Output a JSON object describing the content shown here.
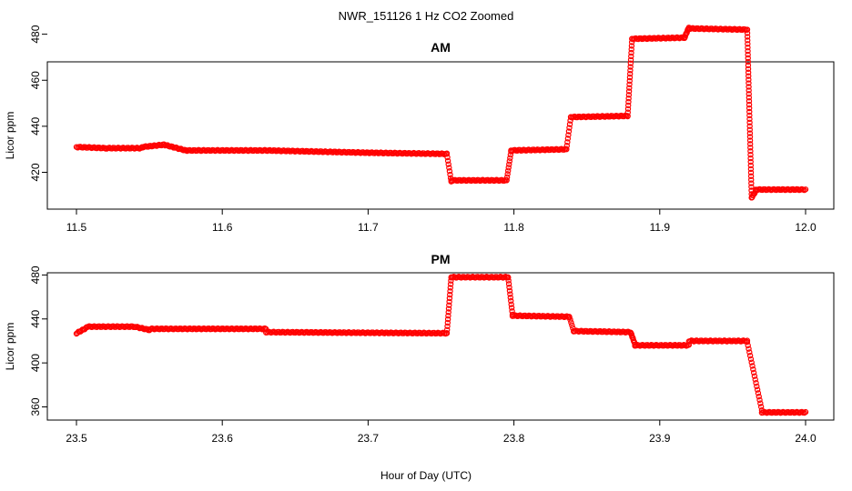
{
  "chart_data": {
    "type": "scatter",
    "title": "NWR_151126  1 Hz CO2 Zoomed",
    "xlabel": "Hour of Day (UTC)",
    "marker_color": "#ff0000",
    "panels": [
      {
        "title": "AM",
        "ylabel": "Licor ppm",
        "xlim": [
          11.5,
          12.0
        ],
        "ylim": [
          404,
          468
        ],
        "xticks": [
          "11.5",
          "11.6",
          "11.7",
          "11.8",
          "11.9",
          "12.0"
        ],
        "yticks": [
          "420",
          "440",
          "460",
          "480"
        ],
        "segments": [
          {
            "x": [
              11.5,
              11.52
            ],
            "y": [
              431,
              430.5
            ]
          },
          {
            "x": [
              11.52,
              11.545
            ],
            "y": [
              430.5,
              430.5
            ]
          },
          {
            "x": [
              11.545,
              11.56
            ],
            "y": [
              431,
              432
            ]
          },
          {
            "x": [
              11.56,
              11.575
            ],
            "y": [
              432,
              429.5
            ]
          },
          {
            "x": [
              11.575,
              11.63
            ],
            "y": [
              429.5,
              429.5
            ]
          },
          {
            "x": [
              11.63,
              11.7
            ],
            "y": [
              429.5,
              428.5
            ]
          },
          {
            "x": [
              11.7,
              11.754
            ],
            "y": [
              428.5,
              428
            ]
          },
          {
            "x": [
              11.754,
              11.757
            ],
            "y": [
              428,
              416
            ]
          },
          {
            "x": [
              11.757,
              11.795
            ],
            "y": [
              416.5,
              416.5
            ]
          },
          {
            "x": [
              11.795,
              11.798
            ],
            "y": [
              416.5,
              429
            ]
          },
          {
            "x": [
              11.798,
              11.836
            ],
            "y": [
              429.5,
              430
            ]
          },
          {
            "x": [
              11.836,
              11.839
            ],
            "y": [
              430,
              444
            ]
          },
          {
            "x": [
              11.839,
              11.878
            ],
            "y": [
              444,
              444.5
            ]
          },
          {
            "x": [
              11.878,
              11.881
            ],
            "y": [
              444.5,
              478
            ]
          },
          {
            "x": [
              11.881,
              11.917
            ],
            "y": [
              478,
              478.5
            ]
          },
          {
            "x": [
              11.917,
              11.92
            ],
            "y": [
              478.5,
              483
            ]
          },
          {
            "x": [
              11.92,
              11.96
            ],
            "y": [
              482.5,
              482
            ]
          },
          {
            "x": [
              11.96,
              11.963
            ],
            "y": [
              482,
              409
            ]
          },
          {
            "x": [
              11.963,
              11.966
            ],
            "y": [
              409,
              412
            ]
          },
          {
            "x": [
              11.966,
              12.0
            ],
            "y": [
              412.5,
              412.5
            ]
          }
        ]
      },
      {
        "title": "PM",
        "ylabel": "Licor ppm",
        "xlim": [
          23.5,
          24.0
        ],
        "ylim": [
          348,
          482
        ],
        "xticks": [
          "23.5",
          "23.6",
          "23.7",
          "23.8",
          "23.9",
          "24.0"
        ],
        "yticks": [
          "360",
          "400",
          "440",
          "480"
        ],
        "segments": [
          {
            "x": [
              23.5,
              23.507
            ],
            "y": [
              427,
              432
            ]
          },
          {
            "x": [
              23.507,
              23.54
            ],
            "y": [
              433,
              433
            ]
          },
          {
            "x": [
              23.54,
              23.55
            ],
            "y": [
              433,
              430
            ]
          },
          {
            "x": [
              23.55,
              23.63
            ],
            "y": [
              431,
              431
            ]
          },
          {
            "x": [
              23.63,
              23.754
            ],
            "y": [
              428,
              427
            ]
          },
          {
            "x": [
              23.754,
              23.757
            ],
            "y": [
              427,
              478
            ]
          },
          {
            "x": [
              23.757,
              23.796
            ],
            "y": [
              478,
              478
            ]
          },
          {
            "x": [
              23.796,
              23.799
            ],
            "y": [
              478,
              444
            ]
          },
          {
            "x": [
              23.799,
              23.838
            ],
            "y": [
              443,
              442
            ]
          },
          {
            "x": [
              23.838,
              23.841
            ],
            "y": [
              442,
              429
            ]
          },
          {
            "x": [
              23.841,
              23.88
            ],
            "y": [
              429,
              428
            ]
          },
          {
            "x": [
              23.88,
              23.883
            ],
            "y": [
              428,
              417
            ]
          },
          {
            "x": [
              23.883,
              23.92
            ],
            "y": [
              416,
              416
            ]
          },
          {
            "x": [
              23.92,
              23.96
            ],
            "y": [
              420,
              420
            ]
          },
          {
            "x": [
              23.96,
              23.97
            ],
            "y": [
              419,
              357
            ]
          },
          {
            "x": [
              23.97,
              24.0
            ],
            "y": [
              355,
              355
            ]
          }
        ]
      }
    ]
  }
}
